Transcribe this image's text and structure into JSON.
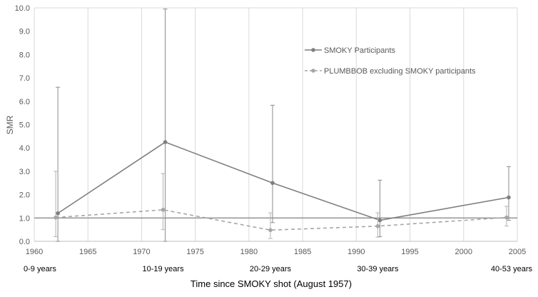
{
  "chart_data": {
    "type": "line",
    "xlabel": "Time since SMOKY shot (August 1957)",
    "ylabel": "SMR",
    "xlim": [
      1960,
      2005
    ],
    "ylim": [
      0,
      10
    ],
    "x_ticks": [
      1960,
      1965,
      1970,
      1975,
      1980,
      1985,
      1990,
      1995,
      2000,
      2005
    ],
    "y_ticks": [
      "0.0",
      "1.0",
      "2.0",
      "3.0",
      "4.0",
      "5.0",
      "6.0",
      "7.0",
      "8.0",
      "9.0",
      "10.0"
    ],
    "categories": [
      {
        "label": "0-9 years",
        "x": 1962
      },
      {
        "label": "10-19 years",
        "x": 1972
      },
      {
        "label": "20-29 years",
        "x": 1982
      },
      {
        "label": "30-39 years",
        "x": 1992
      },
      {
        "label": "40-53 years",
        "x": 2004
      }
    ],
    "reference_line": 1.0,
    "grid": "vertical",
    "legend_position": "right",
    "series": [
      {
        "name": "SMOKY Participants",
        "style": "solid",
        "color": "#7f7f7f",
        "x": [
          1962.2,
          1972.2,
          1982.2,
          1992.2,
          2004.2
        ],
        "y": [
          1.2,
          4.25,
          2.5,
          0.9,
          1.88
        ],
        "err_low": [
          0.0,
          0.0,
          0.8,
          0.2,
          0.9
        ],
        "err_high": [
          6.6,
          9.95,
          5.83,
          2.62,
          3.2
        ]
      },
      {
        "name": "PLUMBBOB excluding SMOKY participants",
        "style": "dashed",
        "color": "#a6a6a6",
        "x": [
          1962.0,
          1972.0,
          1982.0,
          1992.0,
          2004.0
        ],
        "y": [
          1.02,
          1.35,
          0.48,
          0.65,
          1.02
        ],
        "err_low": [
          0.2,
          0.5,
          0.12,
          0.18,
          0.65
        ],
        "err_high": [
          3.0,
          2.9,
          1.22,
          1.22,
          1.5
        ]
      }
    ]
  }
}
